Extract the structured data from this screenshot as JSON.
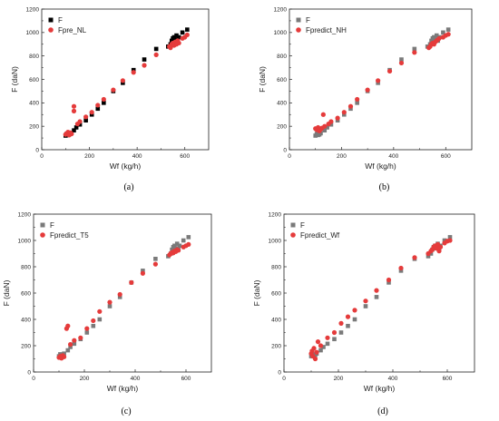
{
  "chart_data": [
    {
      "type": "scatter",
      "panel_label": "(a)",
      "xlabel": "Wf (kg/h)",
      "ylabel": "F (daN)",
      "xlim": [
        0,
        700
      ],
      "ylim": [
        0,
        1200
      ],
      "xticks": [
        "0",
        "200",
        "400",
        "600"
      ],
      "yticks": [
        "0",
        "200",
        "400",
        "600",
        "800",
        "1000",
        "1200"
      ],
      "legend_position": "top-left",
      "series": [
        {
          "name": "F",
          "color": "#000000",
          "marker": "square",
          "x": [
            100,
            105,
            110,
            115,
            120,
            135,
            145,
            160,
            185,
            210,
            235,
            260,
            300,
            340,
            385,
            430,
            480,
            530,
            540,
            545,
            550,
            555,
            560,
            565,
            570,
            575,
            590,
            610
          ],
          "y": [
            120,
            135,
            125,
            130,
            140,
            165,
            190,
            215,
            250,
            300,
            350,
            400,
            500,
            570,
            680,
            770,
            860,
            880,
            900,
            930,
            950,
            960,
            940,
            975,
            930,
            960,
            1000,
            1025
          ]
        },
        {
          "name": "Fpre_NL",
          "color": "#e53b3b",
          "marker": "circle",
          "x": [
            100,
            105,
            110,
            115,
            120,
            125,
            135,
            135,
            150,
            160,
            185,
            210,
            235,
            260,
            300,
            340,
            385,
            430,
            480,
            535,
            540,
            545,
            550,
            555,
            560,
            565,
            570,
            575,
            590,
            600,
            610
          ],
          "y": [
            130,
            140,
            150,
            125,
            145,
            135,
            330,
            370,
            220,
            240,
            280,
            320,
            380,
            430,
            510,
            590,
            660,
            720,
            810,
            880,
            870,
            900,
            910,
            890,
            920,
            900,
            930,
            910,
            950,
            960,
            980
          ]
        }
      ]
    },
    {
      "type": "scatter",
      "panel_label": "(b)",
      "xlabel": "Wf (kg/h)",
      "ylabel": "F (daN)",
      "xlim": [
        0,
        700
      ],
      "ylim": [
        0,
        1200
      ],
      "xticks": [
        "0",
        "200",
        "400",
        "600"
      ],
      "yticks": [
        "0",
        "200",
        "400",
        "600",
        "800",
        "1000",
        "1200"
      ],
      "legend_position": "top-left",
      "series": [
        {
          "name": "F",
          "color": "#7a7a7a",
          "marker": "square",
          "x": [
            100,
            105,
            110,
            115,
            120,
            135,
            145,
            160,
            185,
            210,
            235,
            260,
            300,
            340,
            385,
            430,
            480,
            530,
            540,
            545,
            550,
            555,
            560,
            565,
            570,
            575,
            590,
            610
          ],
          "y": [
            120,
            135,
            125,
            130,
            140,
            165,
            190,
            215,
            250,
            300,
            350,
            400,
            500,
            570,
            680,
            770,
            860,
            880,
            900,
            930,
            950,
            960,
            940,
            975,
            930,
            960,
            1000,
            1025
          ]
        },
        {
          "name": "Fpredict_NH",
          "color": "#e53b3b",
          "marker": "circle",
          "x": [
            100,
            105,
            110,
            115,
            120,
            125,
            130,
            135,
            150,
            160,
            185,
            210,
            235,
            260,
            300,
            340,
            385,
            430,
            480,
            535,
            540,
            545,
            550,
            555,
            560,
            565,
            570,
            575,
            590,
            600,
            610
          ],
          "y": [
            180,
            170,
            190,
            160,
            175,
            185,
            300,
            200,
            220,
            240,
            270,
            320,
            370,
            430,
            510,
            590,
            670,
            740,
            830,
            870,
            880,
            900,
            910,
            900,
            920,
            930,
            940,
            950,
            960,
            975,
            985
          ]
        }
      ]
    },
    {
      "type": "scatter",
      "panel_label": "(c)",
      "xlabel": "Wf (kg/h)",
      "ylabel": "F (daN)",
      "xlim": [
        0,
        700
      ],
      "ylim": [
        0,
        1200
      ],
      "xticks": [
        "0",
        "200",
        "400",
        "600"
      ],
      "yticks": [
        "0",
        "200",
        "400",
        "600",
        "800",
        "1000",
        "1200"
      ],
      "legend_position": "top-left",
      "series": [
        {
          "name": "F",
          "color": "#7a7a7a",
          "marker": "square",
          "x": [
            100,
            105,
            110,
            115,
            120,
            135,
            145,
            160,
            185,
            210,
            235,
            260,
            300,
            340,
            385,
            430,
            480,
            530,
            540,
            545,
            550,
            555,
            560,
            565,
            570,
            575,
            590,
            610
          ],
          "y": [
            120,
            135,
            125,
            130,
            140,
            165,
            190,
            215,
            250,
            300,
            350,
            400,
            500,
            570,
            680,
            770,
            860,
            880,
            900,
            930,
            950,
            960,
            940,
            975,
            930,
            960,
            1000,
            1025
          ]
        },
        {
          "name": "Fpredict_T5",
          "color": "#e53b3b",
          "marker": "circle",
          "x": [
            100,
            105,
            110,
            115,
            120,
            130,
            135,
            145,
            160,
            185,
            210,
            235,
            260,
            300,
            340,
            385,
            430,
            480,
            535,
            540,
            545,
            550,
            555,
            560,
            565,
            570,
            590,
            600,
            610
          ],
          "y": [
            110,
            120,
            105,
            125,
            115,
            330,
            350,
            210,
            240,
            260,
            330,
            390,
            460,
            530,
            590,
            680,
            750,
            820,
            890,
            900,
            910,
            905,
            920,
            915,
            930,
            925,
            950,
            960,
            970
          ]
        }
      ]
    },
    {
      "type": "scatter",
      "panel_label": "(d)",
      "xlabel": "Wf (kg/h)",
      "ylabel": "F (daN)",
      "xlim": [
        0,
        700
      ],
      "ylim": [
        0,
        1200
      ],
      "xticks": [
        "0",
        "200",
        "400",
        "600"
      ],
      "yticks": [
        "0",
        "200",
        "400",
        "600",
        "800",
        "1000",
        "1200"
      ],
      "legend_position": "top-left",
      "series": [
        {
          "name": "F",
          "color": "#7a7a7a",
          "marker": "square",
          "x": [
            100,
            105,
            110,
            115,
            120,
            135,
            145,
            160,
            185,
            210,
            235,
            260,
            300,
            340,
            385,
            430,
            480,
            530,
            540,
            545,
            550,
            555,
            560,
            565,
            570,
            575,
            590,
            610
          ],
          "y": [
            120,
            135,
            125,
            130,
            140,
            165,
            190,
            215,
            250,
            300,
            350,
            400,
            500,
            570,
            680,
            770,
            860,
            880,
            900,
            930,
            950,
            960,
            940,
            975,
            930,
            960,
            1000,
            1025
          ]
        },
        {
          "name": "Fpredict_Wf",
          "color": "#e53b3b",
          "marker": "circle",
          "x": [
            100,
            103,
            106,
            110,
            115,
            120,
            125,
            135,
            160,
            185,
            210,
            235,
            260,
            300,
            340,
            385,
            430,
            480,
            530,
            540,
            545,
            550,
            555,
            560,
            565,
            570,
            575,
            590,
            600,
            610
          ],
          "y": [
            140,
            160,
            120,
            180,
            100,
            150,
            230,
            200,
            260,
            300,
            370,
            420,
            470,
            540,
            620,
            700,
            790,
            870,
            900,
            920,
            930,
            950,
            960,
            940,
            970,
            920,
            950,
            980,
            995,
            1000
          ]
        }
      ]
    }
  ]
}
